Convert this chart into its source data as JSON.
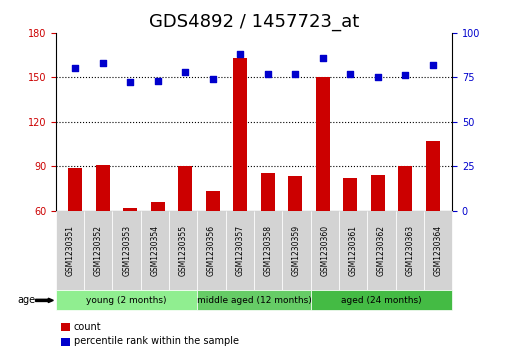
{
  "title": "GDS4892 / 1457723_at",
  "samples": [
    "GSM1230351",
    "GSM1230352",
    "GSM1230353",
    "GSM1230354",
    "GSM1230355",
    "GSM1230356",
    "GSM1230357",
    "GSM1230358",
    "GSM1230359",
    "GSM1230360",
    "GSM1230361",
    "GSM1230362",
    "GSM1230363",
    "GSM1230364"
  ],
  "counts": [
    89,
    91,
    62,
    66,
    90,
    73,
    163,
    85,
    83,
    150,
    82,
    84,
    90,
    107
  ],
  "percentiles": [
    80,
    83,
    72,
    73,
    78,
    74,
    88,
    77,
    77,
    86,
    77,
    75,
    76,
    82
  ],
  "groups": [
    {
      "label": "young (2 months)",
      "start": 0,
      "end": 5,
      "color": "#90EE90"
    },
    {
      "label": "middle aged (12 months)",
      "start": 5,
      "end": 9,
      "color": "#66CC66"
    },
    {
      "label": "aged (24 months)",
      "start": 9,
      "end": 14,
      "color": "#44BB44"
    }
  ],
  "bar_color": "#CC0000",
  "dot_color": "#0000CC",
  "ylim_left": [
    60,
    180
  ],
  "ylim_right": [
    0,
    100
  ],
  "yticks_left": [
    60,
    90,
    120,
    150,
    180
  ],
  "yticks_right": [
    0,
    25,
    50,
    75,
    100
  ],
  "grid_values": [
    90,
    120,
    150
  ],
  "bg_color": "#FFFFFF",
  "label_color_left": "#CC0000",
  "label_color_right": "#0000CC",
  "title_fontsize": 13,
  "tick_fontsize": 7,
  "sample_box_color": "#D3D3D3",
  "age_label": "age"
}
